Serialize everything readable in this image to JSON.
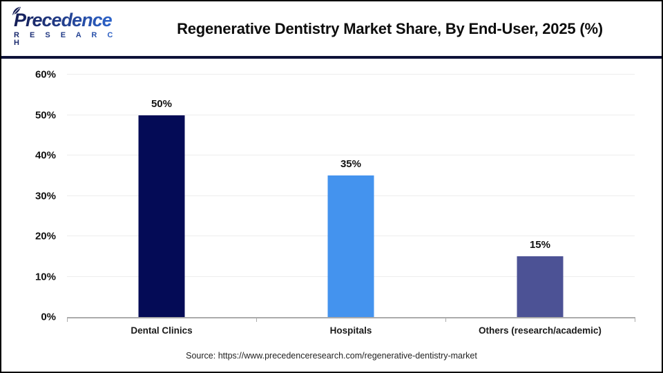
{
  "header": {
    "logo": {
      "brand": "Precedence",
      "sub": "R E S E A R C H"
    },
    "title": "Regenerative Dentistry Market Share, By End-User, 2025 (%)"
  },
  "chart_data": {
    "type": "bar",
    "title": "Regenerative Dentistry Market Share, By End-User, 2025 (%)",
    "categories": [
      "Dental Clinics",
      "Hospitals",
      "Others (research/academic)"
    ],
    "values": [
      50,
      35,
      15
    ],
    "value_labels": [
      "50%",
      "35%",
      "15%"
    ],
    "bar_colors": [
      "#040b56",
      "#4493ee",
      "#4c5295"
    ],
    "xlabel": "",
    "ylabel": "",
    "ylim": [
      0,
      60
    ],
    "ytick_step": 10,
    "ytick_labels": [
      "0%",
      "10%",
      "20%",
      "30%",
      "40%",
      "50%",
      "60%"
    ],
    "grid": true,
    "legend": false,
    "grid_color": "#ededed",
    "axis_color": "#ababab"
  },
  "footer": {
    "source": "Source: https://www.precedenceresearch.com/regenerative-dentistry-market"
  }
}
